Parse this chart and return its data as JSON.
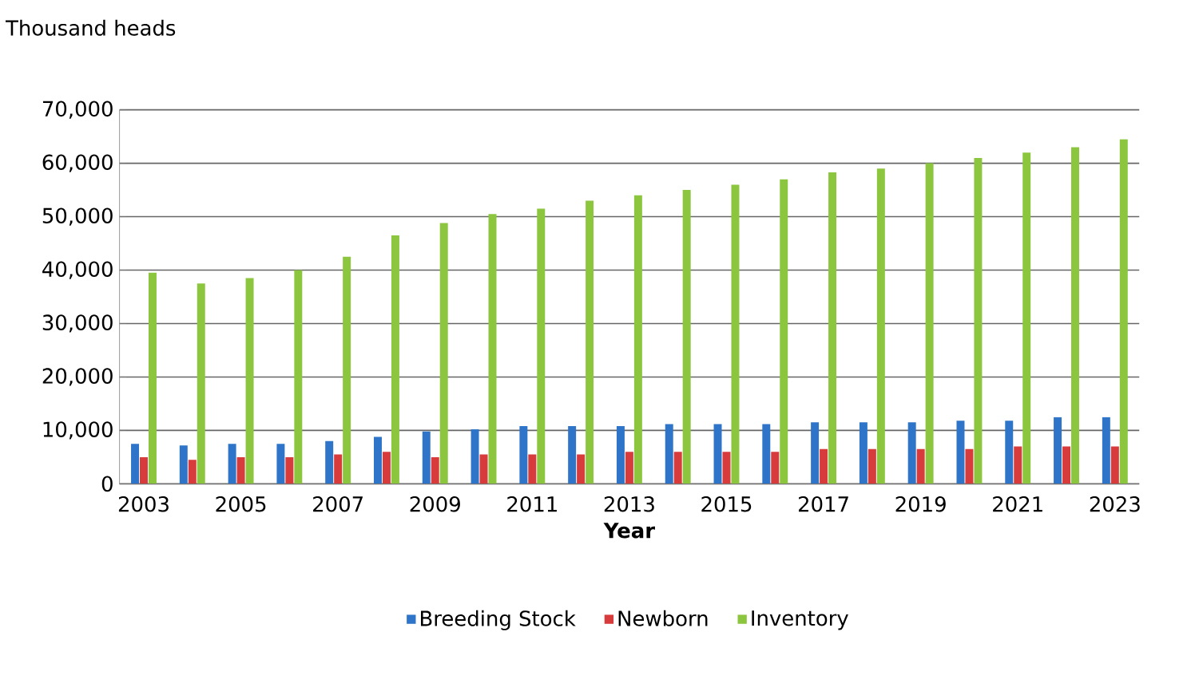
{
  "chart_data": {
    "type": "bar",
    "ylabel": "Thousand heads",
    "xlabel": "Year",
    "categories": [
      "2003",
      null,
      "2005",
      null,
      "2007",
      null,
      "2009",
      null,
      "2011",
      null,
      "2013",
      null,
      "2015",
      null,
      "2017",
      null,
      "2019",
      null,
      "2021",
      null,
      "2023"
    ],
    "series": [
      {
        "name": "Breeding Stock",
        "color": "#2e75c9",
        "values": [
          7500,
          7200,
          7500,
          7500,
          8000,
          8800,
          9800,
          10200,
          10800,
          10800,
          10800,
          11200,
          11200,
          11200,
          11500,
          11500,
          11500,
          11800,
          11800,
          12500,
          12500
        ]
      },
      {
        "name": "Newborn",
        "color": "#d83b3b",
        "values": [
          5000,
          4500,
          5000,
          5000,
          5500,
          6000,
          5000,
          5500,
          5500,
          5500,
          6000,
          6000,
          6000,
          6000,
          6500,
          6500,
          6500,
          6500,
          7000,
          7000,
          7000
        ]
      },
      {
        "name": "Inventory",
        "color": "#8cc63f",
        "values": [
          39500,
          37500,
          38500,
          40000,
          42500,
          46500,
          48800,
          50500,
          51500,
          53000,
          54000,
          55000,
          56000,
          57000,
          58300,
          59000,
          60000,
          61000,
          62000,
          63000,
          64500
        ]
      }
    ],
    "ylim": [
      0,
      70000
    ],
    "yticks": [
      0,
      {
        "value": 10000,
        "label": "10,000"
      },
      {
        "value": 20000,
        "label": "20,000"
      },
      {
        "value": 30000,
        "label": "30,000"
      },
      {
        "value": 40000,
        "label": "40,000"
      },
      {
        "value": 50000,
        "label": "50,000"
      },
      {
        "value": 60000,
        "label": "60,000"
      },
      {
        "value": 70000,
        "label": "70,000"
      }
    ],
    "grid": "y",
    "legend": "bottom"
  }
}
